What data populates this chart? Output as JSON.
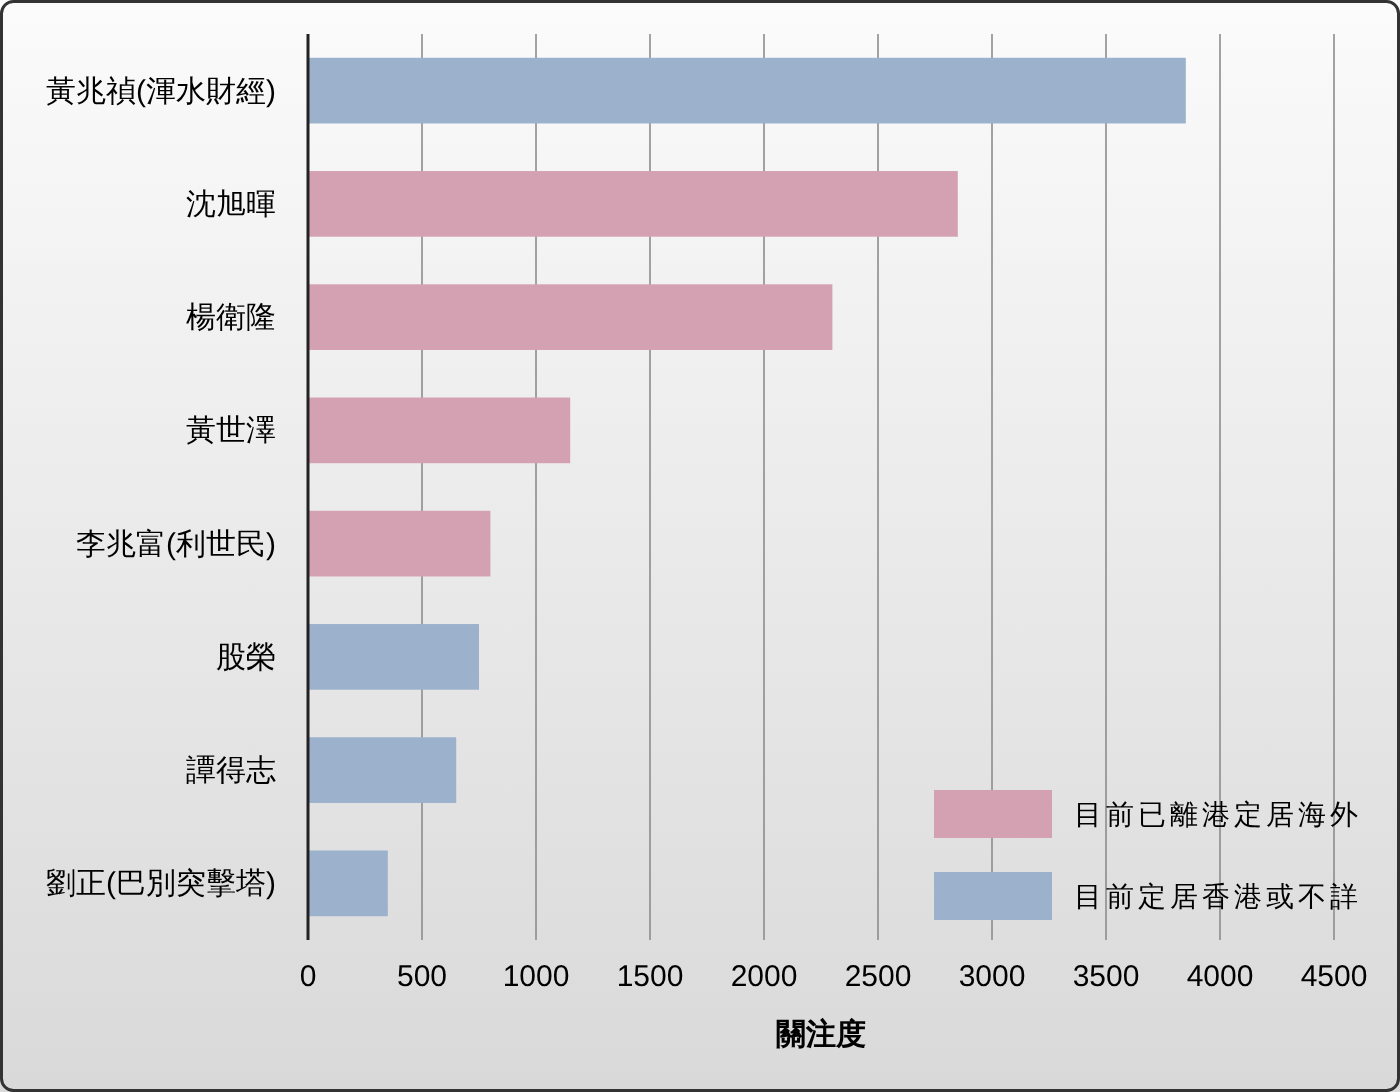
{
  "chart_data": {
    "type": "bar",
    "orientation": "horizontal",
    "stacked": true,
    "categories": [
      "黃兆禎(渾水財經)",
      "沈旭暉",
      "楊衛隆",
      "黃世澤",
      "李兆富(利世民)",
      "股榮",
      "譚得志",
      "劉正(巴別突擊塔)"
    ],
    "series": [
      {
        "name": "目前已離港定居海外",
        "color": "#d4a1b3",
        "values": [
          null,
          2850,
          2300,
          1150,
          800,
          null,
          null,
          null
        ]
      },
      {
        "name": "目前定居香港或不詳",
        "color": "#9cb1cc",
        "values": [
          3850,
          null,
          null,
          null,
          null,
          750,
          650,
          350
        ]
      }
    ],
    "xlabel": "關注度",
    "xlim": [
      0,
      4500
    ],
    "xticks": [
      0,
      500,
      1000,
      1500,
      2000,
      2500,
      3000,
      3500,
      4000,
      4500
    ],
    "grid": "x",
    "legend": "bottom right"
  }
}
